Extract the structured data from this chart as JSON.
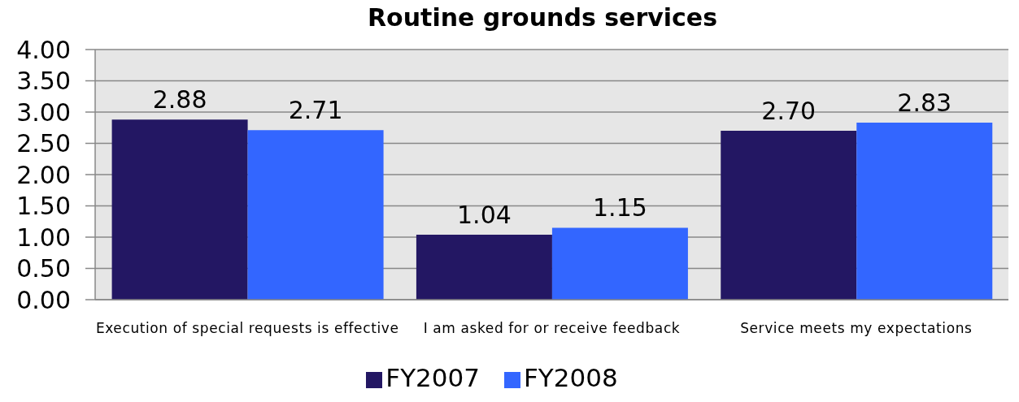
{
  "chart_data": {
    "type": "bar",
    "title": "Routine grounds services",
    "categories": [
      "Execution of special requests is effective",
      "I am asked for or receive feedback",
      "Service meets my expectations"
    ],
    "series": [
      {
        "name": "FY2007",
        "color": "#231763",
        "values": [
          2.88,
          1.04,
          2.7
        ],
        "value_labels": [
          "2.88",
          "1.04",
          "2.70"
        ]
      },
      {
        "name": "FY2008",
        "color": "#3366ff",
        "values": [
          2.71,
          1.15,
          2.83
        ],
        "value_labels": [
          "2.71",
          "1.15",
          "2.83"
        ]
      }
    ],
    "ylim": [
      0,
      4
    ],
    "yticks": [
      {
        "value": 0,
        "label": "0.00"
      },
      {
        "value": 0.5,
        "label": "0.50"
      },
      {
        "value": 1,
        "label": "1.00"
      },
      {
        "value": 1.5,
        "label": "1.50"
      },
      {
        "value": 2,
        "label": "2.00"
      },
      {
        "value": 2.5,
        "label": "2.50"
      },
      {
        "value": 3,
        "label": "3.00"
      },
      {
        "value": 3.5,
        "label": "3.50"
      },
      {
        "value": 4,
        "label": "4.00"
      }
    ],
    "grid": "y",
    "legend": "bottom"
  }
}
